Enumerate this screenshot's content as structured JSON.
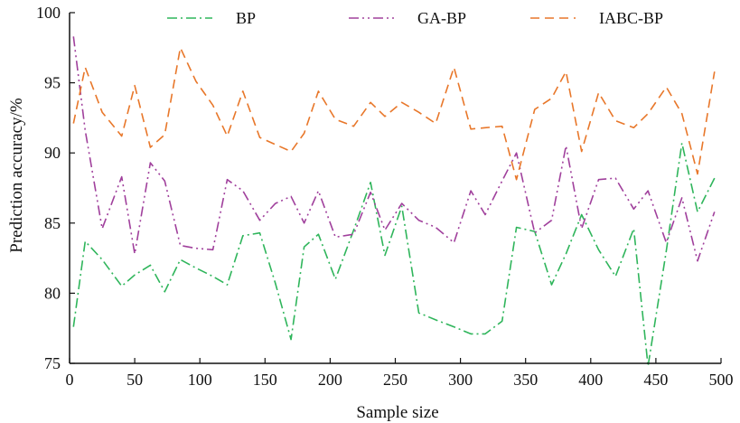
{
  "chart_data": {
    "type": "line",
    "xlabel": "Sample size",
    "ylabel": "Prediction accuracy/%",
    "xlim": [
      0,
      500
    ],
    "ylim": [
      75,
      100
    ],
    "xticks": [
      0,
      50,
      100,
      150,
      200,
      250,
      300,
      350,
      400,
      450,
      500
    ],
    "yticks": [
      75,
      80,
      85,
      90,
      95,
      100
    ],
    "grid": false,
    "legend_position": "top",
    "x": [
      3,
      12,
      25,
      40,
      50,
      62,
      73,
      85,
      97,
      110,
      121,
      133,
      146,
      158,
      170,
      180,
      191,
      204,
      218,
      231,
      242,
      255,
      268,
      281,
      295,
      308,
      319,
      332,
      343,
      357,
      370,
      381,
      393,
      406,
      419,
      433,
      444,
      458,
      470,
      482,
      495
    ],
    "series": [
      {
        "name": "BP",
        "color": "#2fb55b",
        "dash": "dashdot",
        "values": [
          77.6,
          83.7,
          82.4,
          80.5,
          81.3,
          82.0,
          80.1,
          82.4,
          81.8,
          81.2,
          80.6,
          84.1,
          84.3,
          80.7,
          76.7,
          83.3,
          84.2,
          81.0,
          84.5,
          87.9,
          82.7,
          86.2,
          78.6,
          78.1,
          77.6,
          77.1,
          77.1,
          78.0,
          84.7,
          84.4,
          80.6,
          82.8,
          85.6,
          83.1,
          81.2,
          84.6,
          74.8,
          83.0,
          90.7,
          85.8,
          88.2
        ]
      },
      {
        "name": "GA-BP",
        "color": "#a0409c",
        "dash": "dashdotdot",
        "values": [
          98.3,
          91.6,
          84.6,
          88.3,
          82.8,
          89.3,
          88.0,
          83.4,
          83.2,
          83.1,
          88.1,
          87.3,
          85.2,
          86.4,
          86.9,
          85.0,
          87.3,
          84.0,
          84.2,
          87.2,
          84.5,
          86.4,
          85.2,
          84.7,
          83.6,
          87.3,
          85.6,
          88.0,
          90.0,
          84.3,
          85.2,
          90.5,
          84.6,
          88.1,
          88.2,
          86.0,
          87.3,
          83.6,
          86.8,
          82.3,
          85.8
        ]
      },
      {
        "name": "IABC-BP",
        "color": "#e8772a",
        "dash": "dashed",
        "values": [
          92.1,
          96.1,
          92.9,
          91.2,
          94.8,
          90.4,
          91.3,
          97.5,
          95.1,
          93.4,
          91.2,
          94.4,
          91.1,
          90.6,
          90.1,
          91.4,
          94.4,
          92.4,
          91.9,
          93.6,
          92.6,
          93.6,
          92.9,
          92.1,
          96.1,
          91.7,
          91.8,
          91.9,
          88.1,
          93.1,
          93.9,
          95.8,
          90.1,
          94.3,
          92.3,
          91.8,
          92.8,
          94.7,
          92.8,
          88.5,
          95.8
        ]
      }
    ]
  }
}
